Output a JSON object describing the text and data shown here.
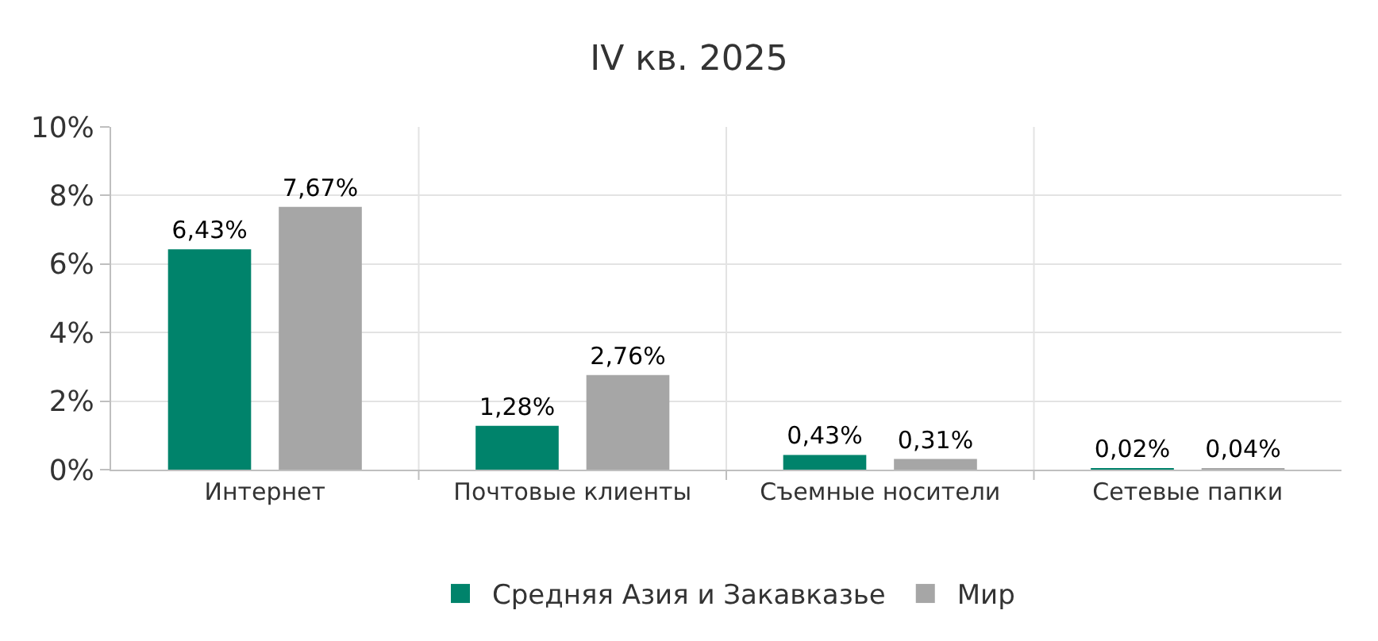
{
  "chart_data": {
    "type": "bar",
    "title": "IV кв. 2025",
    "categories": [
      "Интернет",
      "Почтовые клиенты",
      "Съемные носители",
      "Сетевые папки"
    ],
    "series": [
      {
        "name": "Средняя Азия и Закавказье",
        "color": "#00836b",
        "values": [
          6.43,
          1.28,
          0.43,
          0.02
        ],
        "value_labels": [
          "6,43%",
          "1,28%",
          "0,43%",
          "0,02%"
        ]
      },
      {
        "name": "Мир",
        "color": "#a6a6a6",
        "values": [
          7.67,
          2.76,
          0.31,
          0.04
        ],
        "value_labels": [
          "7,67%",
          "2,76%",
          "0,31%",
          "0,04%"
        ]
      }
    ],
    "ylim": [
      0,
      10
    ],
    "yticks": [
      {
        "value": 0,
        "label": "0%"
      },
      {
        "value": 2,
        "label": "2%"
      },
      {
        "value": 4,
        "label": "4%"
      },
      {
        "value": 6,
        "label": "6%"
      },
      {
        "value": 8,
        "label": "8%"
      },
      {
        "value": 10,
        "label": "10%"
      }
    ],
    "grid": true,
    "legend": "bottom"
  }
}
